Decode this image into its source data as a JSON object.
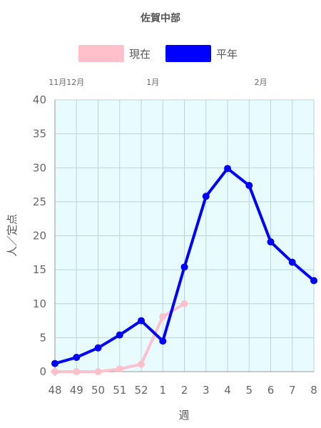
{
  "chart_data": {
    "type": "line",
    "title": "佐賀中部",
    "xlabel": "週",
    "ylabel": "人／定点",
    "categories": [
      "48",
      "49",
      "50",
      "51",
      "52",
      "1",
      "2",
      "3",
      "4",
      "5",
      "6",
      "7",
      "8"
    ],
    "month_labels": [
      {
        "text": "11月12月",
        "at": "49"
      },
      {
        "text": "1月",
        "at": "1"
      },
      {
        "text": "2月",
        "at": "6"
      }
    ],
    "ylim": [
      0,
      40
    ],
    "yticks": [
      0,
      5,
      10,
      15,
      20,
      25,
      30,
      35,
      40
    ],
    "grid": true,
    "legend_position": "top",
    "plot_background": "#e8fcff",
    "series": [
      {
        "name": "現在",
        "color": "#ffc0cb",
        "values": [
          0,
          0,
          0,
          0.4,
          1.1,
          8.1,
          10.0,
          null,
          null,
          null,
          null,
          null,
          null
        ]
      },
      {
        "name": "平年",
        "color": "#0000ff",
        "values": [
          1.2,
          2.1,
          3.5,
          5.4,
          7.5,
          4.5,
          15.4,
          25.8,
          29.9,
          27.4,
          19.1,
          16.1,
          13.4
        ]
      }
    ]
  }
}
